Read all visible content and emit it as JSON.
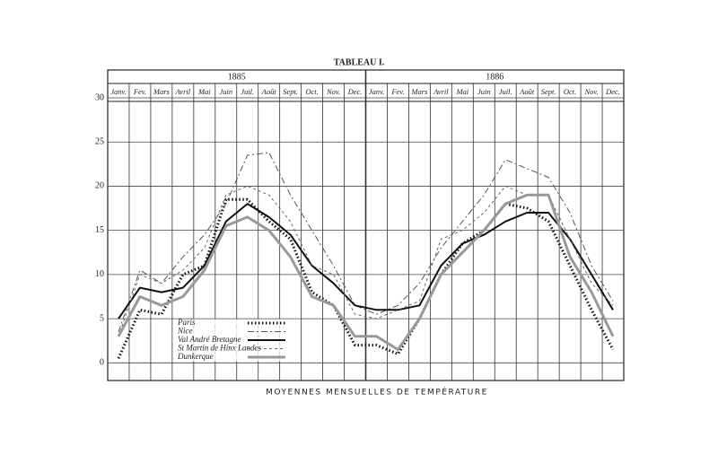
{
  "chart_data": {
    "type": "line",
    "title": "TABLEAU I.",
    "xlabel": "MOYENNES MENSUELLES DE TEMPÉRATURE",
    "years": [
      "1885",
      "1886"
    ],
    "categories": [
      "Janv.",
      "Fev.",
      "Mars",
      "Avril",
      "Mai",
      "Juin",
      "Juil.",
      "Août",
      "Sept.",
      "Oct.",
      "Nov.",
      "Dec.",
      "Janv.",
      "Fev.",
      "Mars",
      "Avril",
      "Mai",
      "Juin",
      "Juil.",
      "Août",
      "Sept.",
      "Oct.",
      "Nov.",
      "Dec."
    ],
    "ylim": [
      -2,
      30
    ],
    "yticks": [
      0,
      5,
      10,
      15,
      20,
      25,
      30
    ],
    "grid": true,
    "series": [
      {
        "name": "Paris",
        "color": "#111111",
        "width": 3,
        "dash": "1.5 2.5",
        "values": [
          0.5,
          6,
          5.5,
          10,
          11,
          18.5,
          18.5,
          16,
          14,
          8,
          6.5,
          2,
          2,
          1,
          5,
          10,
          13.5,
          15,
          18,
          17.5,
          16,
          11,
          6,
          1.5
        ]
      },
      {
        "name": "Nice",
        "color": "#555555",
        "width": 1,
        "dash": "7 3 2 3",
        "values": [
          3.5,
          10.5,
          9,
          12,
          14.5,
          18,
          23.5,
          23.8,
          19,
          15,
          11,
          6.5,
          5.5,
          6.5,
          9,
          13,
          16,
          19,
          23,
          22,
          21,
          17,
          11,
          7
        ]
      },
      {
        "name": "Val André Bretagne",
        "color": "#111111",
        "width": 2,
        "dash": "none",
        "values": [
          5,
          8.5,
          8,
          8.5,
          11,
          16,
          18,
          16.5,
          14.5,
          11,
          9,
          6.5,
          6,
          6,
          6.5,
          11,
          13.5,
          14.5,
          16,
          17,
          17,
          14,
          10,
          6
        ]
      },
      {
        "name": "St Martin de Hinx Landes",
        "color": "#666666",
        "width": 1,
        "dash": "3 3",
        "values": [
          3,
          10,
          9,
          10.5,
          13,
          19,
          20,
          19,
          16,
          11,
          10,
          5.5,
          5,
          6,
          7,
          14,
          15,
          17,
          20,
          19,
          19,
          14,
          9,
          6.5
        ]
      },
      {
        "name": "Dunkerque",
        "color": "#999999",
        "width": 3,
        "dash": "none",
        "values": [
          3,
          7.5,
          6.5,
          7.5,
          10.5,
          15.5,
          16.5,
          15,
          12,
          7.5,
          6.5,
          3,
          3,
          1.5,
          5,
          10,
          12.5,
          15,
          18,
          19,
          19,
          12,
          8,
          3
        ]
      }
    ]
  }
}
